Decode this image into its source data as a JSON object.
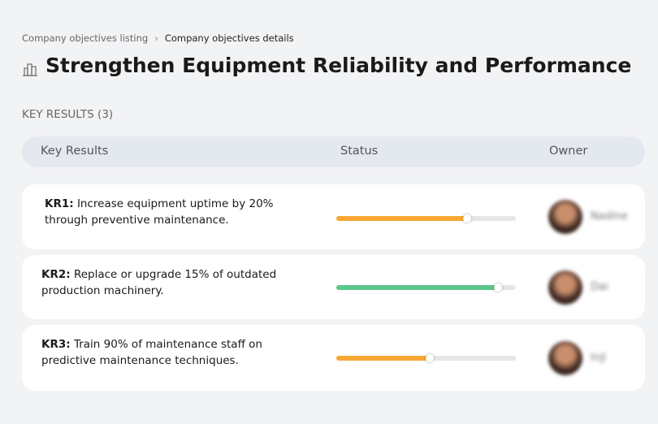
{
  "breadcrumb": {
    "items": [
      "Company objectives listing",
      "Company objectives details"
    ]
  },
  "header": {
    "title": "Strengthen Equipment Reliability and Performance"
  },
  "section": {
    "label": "KEY RESULTS (3)"
  },
  "table": {
    "columns": [
      "Key Results",
      "Status",
      "Owner"
    ],
    "progress_scale": [
      0,
      100
    ],
    "rows": [
      {
        "id": "KR1:",
        "text": "Increase equipment uptime by 20% through preventive maintenance.",
        "progress": 73,
        "color": "#f7a733",
        "owner": "Nadine"
      },
      {
        "id": "KR2:",
        "text": "Replace or upgrade 15% of outdated production machinery.",
        "progress": 90,
        "color": "#5cc68a",
        "owner": "Dai"
      },
      {
        "id": "KR3:",
        "text": "Train 90% of maintenance staff on predictive maintenance techniques.",
        "progress": 52,
        "color": "#f7a733",
        "owner": "Inji"
      }
    ]
  }
}
